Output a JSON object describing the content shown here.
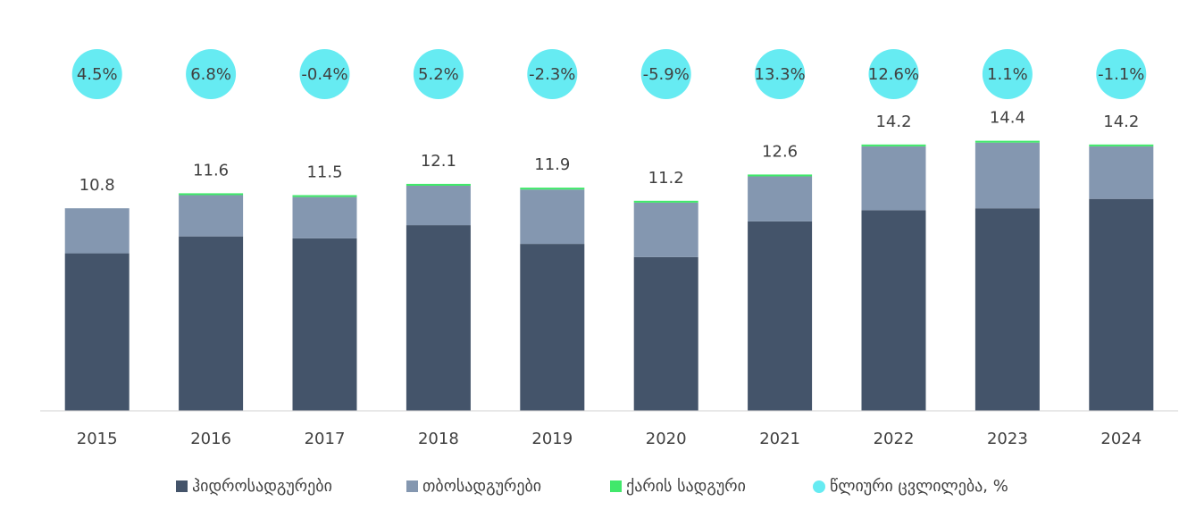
{
  "chart_data": {
    "type": "stacked_bar",
    "categories": [
      "2015",
      "2016",
      "2017",
      "2018",
      "2019",
      "2020",
      "2021",
      "2022",
      "2023",
      "2024"
    ],
    "series": [
      {
        "name": "ჰიდროსადგურები",
        "color": "#44546a",
        "values": [
          8.4,
          9.3,
          9.2,
          9.9,
          8.9,
          8.2,
          10.1,
          10.7,
          10.8,
          11.3
        ]
      },
      {
        "name": "თბოსადგურები",
        "color": "#8497b0",
        "values": [
          2.4,
          2.2,
          2.2,
          2.1,
          2.9,
          2.9,
          2.4,
          3.4,
          3.5,
          2.8
        ]
      },
      {
        "name": "ქარის სადგური",
        "color": "#41e86b",
        "values": [
          0,
          0.1,
          0.1,
          0.1,
          0.1,
          0.1,
          0.1,
          0.1,
          0.1,
          0.1
        ]
      }
    ],
    "totals": [
      10.8,
      11.6,
      11.5,
      12.1,
      11.9,
      11.2,
      12.6,
      14.2,
      14.4,
      14.2
    ],
    "change": {
      "name": "წლიური ცვლილება, %",
      "color": "#66ebf2",
      "values": [
        4.5,
        6.8,
        -0.4,
        5.2,
        -2.3,
        -5.9,
        13.3,
        12.6,
        1.1,
        -1.1
      ],
      "value_labels": [
        "4.5%",
        "6.8%",
        "-0.4%",
        "5.2%",
        "-2.3%",
        "-5.9%",
        "13.3%",
        "12.6%",
        "1.1%",
        "-1.1%"
      ]
    },
    "ylim": [
      0,
      20
    ]
  }
}
